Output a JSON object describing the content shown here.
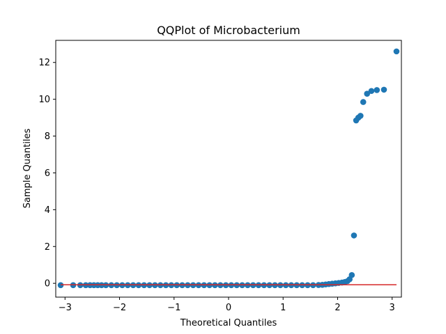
{
  "chart_data": {
    "type": "scatter",
    "title": "QQPlot of Microbacterium",
    "xlabel": "Theoretical Quantiles",
    "ylabel": "Sample Quantiles",
    "xlim": [
      -3.17,
      3.17
    ],
    "ylim": [
      -0.75,
      13.2
    ],
    "xticks": [
      -3,
      -2,
      -1,
      0,
      1,
      2,
      3
    ],
    "yticks": [
      0,
      2,
      4,
      6,
      8,
      10,
      12
    ],
    "grid": false,
    "legend": false,
    "colors": {
      "points": "#1f77b4",
      "line": "#d62728"
    },
    "line": {
      "x": [
        -3.08,
        3.08
      ],
      "y": [
        -0.08,
        -0.08
      ]
    },
    "points": {
      "x": [
        -3.08,
        -2.85,
        -2.72,
        -2.62,
        -2.54,
        -2.47,
        -2.4,
        -2.33,
        -2.25,
        -2.15,
        -2.05,
        -1.95,
        -1.85,
        -1.75,
        -1.65,
        -1.55,
        -1.45,
        -1.35,
        -1.25,
        -1.15,
        -1.05,
        -0.95,
        -0.85,
        -0.75,
        -0.65,
        -0.55,
        -0.45,
        -0.35,
        -0.25,
        -0.15,
        -0.05,
        0.05,
        0.15,
        0.25,
        0.35,
        0.45,
        0.55,
        0.65,
        0.75,
        0.85,
        0.95,
        1.05,
        1.15,
        1.25,
        1.35,
        1.45,
        1.55,
        1.65,
        1.72,
        1.78,
        1.84,
        1.9,
        1.96,
        2.02,
        2.08,
        2.13,
        2.18,
        2.22,
        2.26,
        2.3,
        2.34,
        2.38,
        2.42,
        2.47,
        2.54,
        2.62,
        2.72,
        2.85,
        3.08
      ],
      "y": [
        -0.1,
        -0.1,
        -0.1,
        -0.1,
        -0.1,
        -0.1,
        -0.1,
        -0.1,
        -0.1,
        -0.1,
        -0.1,
        -0.1,
        -0.1,
        -0.1,
        -0.1,
        -0.1,
        -0.1,
        -0.1,
        -0.1,
        -0.1,
        -0.1,
        -0.1,
        -0.1,
        -0.1,
        -0.1,
        -0.1,
        -0.1,
        -0.1,
        -0.1,
        -0.1,
        -0.1,
        -0.1,
        -0.1,
        -0.1,
        -0.1,
        -0.1,
        -0.1,
        -0.1,
        -0.1,
        -0.1,
        -0.1,
        -0.1,
        -0.1,
        -0.1,
        -0.1,
        -0.1,
        -0.1,
        -0.09,
        -0.08,
        -0.06,
        -0.04,
        -0.02,
        0.0,
        0.02,
        0.04,
        0.07,
        0.12,
        0.22,
        0.45,
        2.6,
        8.85,
        9.0,
        9.1,
        9.85,
        10.3,
        10.45,
        10.5,
        10.52,
        12.6
      ]
    }
  }
}
